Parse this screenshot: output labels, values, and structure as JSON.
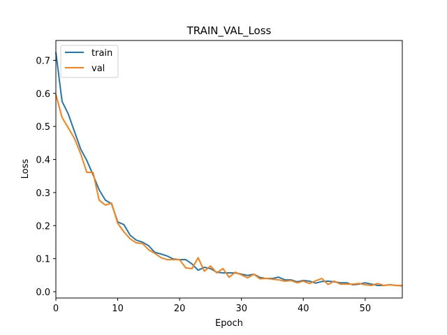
{
  "chart_data": {
    "type": "line",
    "title": "TRAIN_VAL_Loss",
    "xlabel": "Epoch",
    "ylabel": "Loss",
    "xlim": [
      0,
      56
    ],
    "ylim": [
      -0.019,
      0.76
    ],
    "xticks": [
      0,
      10,
      20,
      30,
      40,
      50
    ],
    "xtick_labels": [
      "0",
      "10",
      "20",
      "30",
      "40",
      "50"
    ],
    "yticks": [
      0.0,
      0.1,
      0.2,
      0.3,
      0.4,
      0.5,
      0.6,
      0.7
    ],
    "ytick_labels": [
      "0.0",
      "0.1",
      "0.2",
      "0.3",
      "0.4",
      "0.5",
      "0.6",
      "0.7"
    ],
    "grid": false,
    "legend_position": "top-left",
    "x": [
      0,
      1,
      2,
      3,
      4,
      5,
      6,
      7,
      8,
      9,
      10,
      11,
      12,
      13,
      14,
      15,
      16,
      17,
      18,
      19,
      20,
      21,
      22,
      23,
      24,
      25,
      26,
      27,
      28,
      29,
      30,
      31,
      32,
      33,
      34,
      35,
      36,
      37,
      38,
      39,
      40,
      41,
      42,
      43,
      44,
      45,
      46,
      47,
      48,
      49,
      50,
      51,
      52,
      53,
      54,
      55,
      56
    ],
    "series": [
      {
        "name": "train",
        "color": "#1f77b4",
        "values": [
          0.724,
          0.576,
          0.538,
          0.485,
          0.432,
          0.397,
          0.354,
          0.308,
          0.277,
          0.266,
          0.211,
          0.203,
          0.171,
          0.156,
          0.15,
          0.139,
          0.119,
          0.114,
          0.108,
          0.099,
          0.097,
          0.097,
          0.084,
          0.065,
          0.074,
          0.07,
          0.059,
          0.057,
          0.057,
          0.057,
          0.053,
          0.049,
          0.053,
          0.043,
          0.04,
          0.04,
          0.044,
          0.036,
          0.036,
          0.03,
          0.034,
          0.032,
          0.026,
          0.031,
          0.032,
          0.03,
          0.027,
          0.027,
          0.021,
          0.023,
          0.027,
          0.023,
          0.019,
          0.019,
          0.021,
          0.019,
          0.018
        ]
      },
      {
        "name": "val",
        "color": "#ff7f0e",
        "values": [
          0.597,
          0.527,
          0.496,
          0.464,
          0.418,
          0.361,
          0.361,
          0.277,
          0.262,
          0.268,
          0.207,
          0.181,
          0.16,
          0.148,
          0.146,
          0.127,
          0.116,
          0.103,
          0.097,
          0.097,
          0.097,
          0.072,
          0.07,
          0.103,
          0.062,
          0.078,
          0.057,
          0.07,
          0.044,
          0.059,
          0.051,
          0.042,
          0.053,
          0.039,
          0.04,
          0.038,
          0.036,
          0.032,
          0.034,
          0.027,
          0.032,
          0.025,
          0.033,
          0.04,
          0.022,
          0.032,
          0.023,
          0.023,
          0.023,
          0.025,
          0.021,
          0.019,
          0.025,
          0.019,
          0.021,
          0.019,
          0.019
        ]
      }
    ]
  }
}
